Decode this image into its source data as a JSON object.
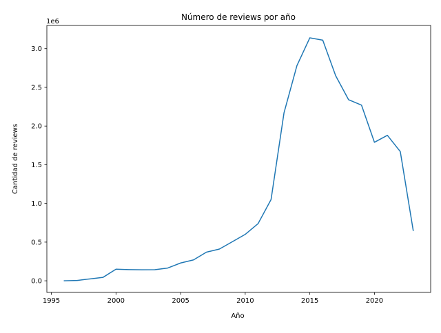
{
  "chart_data": {
    "type": "line",
    "title": "Número de reviews por año",
    "xlabel": "Año",
    "ylabel": "Cantidad de reviews",
    "y_offset_label": "1e6",
    "xlim": [
      1994.65,
      2024.35
    ],
    "ylim": [
      -150000,
      3300000
    ],
    "x_ticks": [
      1995,
      2000,
      2005,
      2010,
      2015,
      2020
    ],
    "x_tick_labels": [
      "1995",
      "2000",
      "2005",
      "2010",
      "2015",
      "2020"
    ],
    "y_ticks": [
      0,
      500000,
      1000000,
      1500000,
      2000000,
      2500000,
      3000000
    ],
    "y_tick_labels": [
      "0.0",
      "0.5",
      "1.0",
      "1.5",
      "2.0",
      "2.5",
      "3.0"
    ],
    "grid": false,
    "series": [
      {
        "color": "#1f77b4",
        "x": [
          1996,
          1997,
          1998,
          1999,
          2000,
          2001,
          2002,
          2003,
          2004,
          2005,
          2006,
          2007,
          2008,
          2009,
          2010,
          2011,
          2012,
          2013,
          2014,
          2015,
          2016,
          2017,
          2018,
          2019,
          2020,
          2021,
          2022,
          2023
        ],
        "y": [
          0,
          5000,
          25000,
          45000,
          150000,
          145000,
          142000,
          143000,
          165000,
          230000,
          270000,
          370000,
          410000,
          505000,
          600000,
          740000,
          1050000,
          2170000,
          2780000,
          3140000,
          3110000,
          2650000,
          2340000,
          2270000,
          1790000,
          1880000,
          1670000,
          650000
        ]
      }
    ]
  }
}
